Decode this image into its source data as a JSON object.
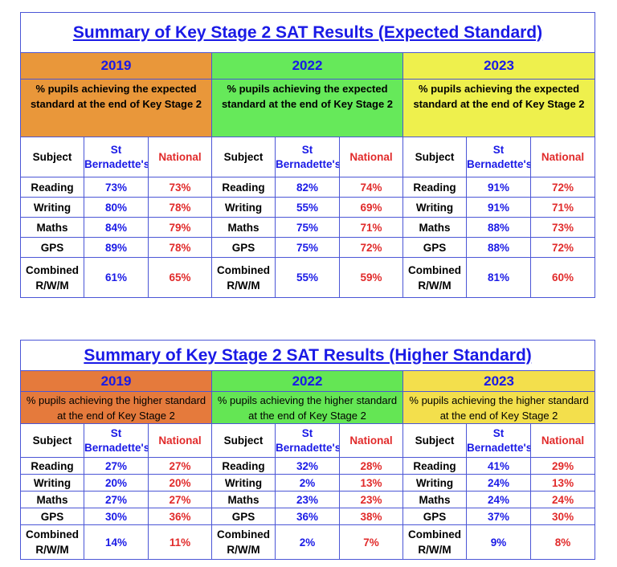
{
  "tables": [
    {
      "title": "Summary of Key Stage 2 SAT Results (Expected Standard)",
      "years": [
        "2019",
        "2022",
        "2023"
      ],
      "description": "% pupils achieving the expected standard at the end of Key Stage 2",
      "headers": {
        "subject": "Subject",
        "school": "St Bernadette's",
        "national": "National"
      },
      "rows": [
        {
          "subject": "Reading",
          "values": [
            [
              "73%",
              "73%"
            ],
            [
              "82%",
              "74%"
            ],
            [
              "91%",
              "72%"
            ]
          ]
        },
        {
          "subject": "Writing",
          "values": [
            [
              "80%",
              "78%"
            ],
            [
              "55%",
              "69%"
            ],
            [
              "91%",
              "71%"
            ]
          ]
        },
        {
          "subject": "Maths",
          "values": [
            [
              "84%",
              "79%"
            ],
            [
              "75%",
              "71%"
            ],
            [
              "88%",
              "73%"
            ]
          ]
        },
        {
          "subject": "GPS",
          "values": [
            [
              "89%",
              "78%"
            ],
            [
              "75%",
              "72%"
            ],
            [
              "88%",
              "72%"
            ]
          ]
        },
        {
          "subject": "Combined R/W/M",
          "values": [
            [
              "61%",
              "65%"
            ],
            [
              "55%",
              "59%"
            ],
            [
              "81%",
              "60%"
            ]
          ]
        }
      ]
    },
    {
      "title": "Summary of Key Stage 2 SAT Results (Higher Standard)",
      "years": [
        "2019",
        "2022",
        "2023"
      ],
      "description": "% pupils achieving the higher standard at the end of Key Stage 2",
      "headers": {
        "subject": "Subject",
        "school": "St Bernadette's",
        "national": "National"
      },
      "rows": [
        {
          "subject": "Reading",
          "values": [
            [
              "27%",
              "27%"
            ],
            [
              "32%",
              "28%"
            ],
            [
              "41%",
              "29%"
            ]
          ]
        },
        {
          "subject": "Writing",
          "values": [
            [
              "20%",
              "20%"
            ],
            [
              "2%",
              "13%"
            ],
            [
              "24%",
              "13%"
            ]
          ]
        },
        {
          "subject": "Maths",
          "values": [
            [
              "27%",
              "27%"
            ],
            [
              "23%",
              "23%"
            ],
            [
              "24%",
              "24%"
            ]
          ]
        },
        {
          "subject": "GPS",
          "values": [
            [
              "30%",
              "36%"
            ],
            [
              "36%",
              "38%"
            ],
            [
              "37%",
              "30%"
            ]
          ]
        },
        {
          "subject": "Combined R/W/M",
          "values": [
            [
              "14%",
              "11%"
            ],
            [
              "2%",
              "7%"
            ],
            [
              "9%",
              "8%"
            ]
          ]
        }
      ]
    }
  ],
  "colors": {
    "title_text": "#1a1ae6",
    "school_values": "#1a1ae6",
    "national_values": "#e12b2b",
    "border": "#4b56d6",
    "expected_year_backgrounds": [
      "#e9973a",
      "#66e95a",
      "#eef04d"
    ],
    "higher_year_backgrounds": [
      "#e57a3c",
      "#64e654",
      "#f3df4c"
    ]
  }
}
